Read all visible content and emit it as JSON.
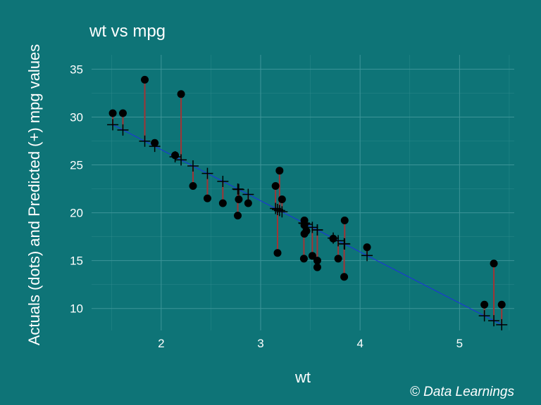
{
  "chart_data": {
    "type": "scatter",
    "title": "wt vs mpg",
    "xlabel": "wt",
    "ylabel": "Actuals (dots) and Predicted (+) mpg values",
    "caption": "© Data Learnings",
    "xlim": [
      1.3,
      5.55
    ],
    "ylim": [
      7.7,
      36.5
    ],
    "x_ticks": [
      2,
      3,
      4,
      5
    ],
    "y_ticks": [
      10,
      15,
      20,
      25,
      30,
      35
    ],
    "grid": true,
    "fit_line": {
      "intercept": 37.285,
      "slope": -5.344
    },
    "series": [
      {
        "name": "Actuals (dots)",
        "values": [
          [
            2.62,
            21.0
          ],
          [
            2.875,
            21.0
          ],
          [
            2.32,
            22.8
          ],
          [
            3.215,
            21.4
          ],
          [
            3.44,
            18.7
          ],
          [
            3.46,
            18.1
          ],
          [
            3.57,
            14.3
          ],
          [
            3.19,
            24.4
          ],
          [
            3.15,
            22.8
          ],
          [
            3.44,
            19.2
          ],
          [
            3.44,
            17.8
          ],
          [
            4.07,
            16.4
          ],
          [
            3.73,
            17.3
          ],
          [
            3.78,
            15.2
          ],
          [
            5.25,
            10.4
          ],
          [
            5.424,
            10.4
          ],
          [
            5.345,
            14.7
          ],
          [
            2.2,
            32.4
          ],
          [
            1.615,
            30.4
          ],
          [
            1.835,
            33.9
          ],
          [
            2.465,
            21.5
          ],
          [
            3.52,
            15.5
          ],
          [
            3.435,
            15.2
          ],
          [
            3.84,
            13.3
          ],
          [
            3.845,
            19.2
          ],
          [
            1.935,
            27.3
          ],
          [
            2.14,
            26.0
          ],
          [
            1.513,
            30.4
          ],
          [
            3.17,
            15.8
          ],
          [
            2.77,
            19.7
          ],
          [
            3.57,
            15.0
          ],
          [
            2.78,
            21.4
          ]
        ]
      },
      {
        "name": "Predicted (+)",
        "values": [
          [
            2.62,
            23.28
          ],
          [
            2.875,
            21.92
          ],
          [
            2.32,
            24.89
          ],
          [
            3.215,
            20.1
          ],
          [
            3.44,
            18.9
          ],
          [
            3.46,
            18.79
          ],
          [
            3.57,
            18.21
          ],
          [
            3.19,
            20.24
          ],
          [
            3.15,
            20.45
          ],
          [
            3.44,
            18.9
          ],
          [
            3.44,
            18.9
          ],
          [
            4.07,
            15.53
          ],
          [
            3.73,
            17.35
          ],
          [
            3.78,
            17.08
          ],
          [
            5.25,
            9.23
          ],
          [
            5.424,
            8.3
          ],
          [
            5.345,
            8.72
          ],
          [
            2.2,
            25.53
          ],
          [
            1.615,
            28.65
          ],
          [
            1.835,
            27.48
          ],
          [
            2.465,
            24.11
          ],
          [
            3.52,
            18.47
          ],
          [
            3.435,
            18.93
          ],
          [
            3.84,
            16.76
          ],
          [
            3.845,
            16.74
          ],
          [
            1.935,
            26.94
          ],
          [
            2.14,
            25.85
          ],
          [
            1.513,
            29.2
          ],
          [
            3.17,
            20.34
          ],
          [
            2.77,
            22.48
          ],
          [
            3.57,
            18.21
          ],
          [
            2.78,
            22.43
          ]
        ]
      }
    ]
  },
  "colors": {
    "background": "#0e7477",
    "grid": "#3d9598",
    "fit_line": "#1f2fe0",
    "residual": "#a03535",
    "point": "#000000",
    "text": "#ffffff"
  }
}
